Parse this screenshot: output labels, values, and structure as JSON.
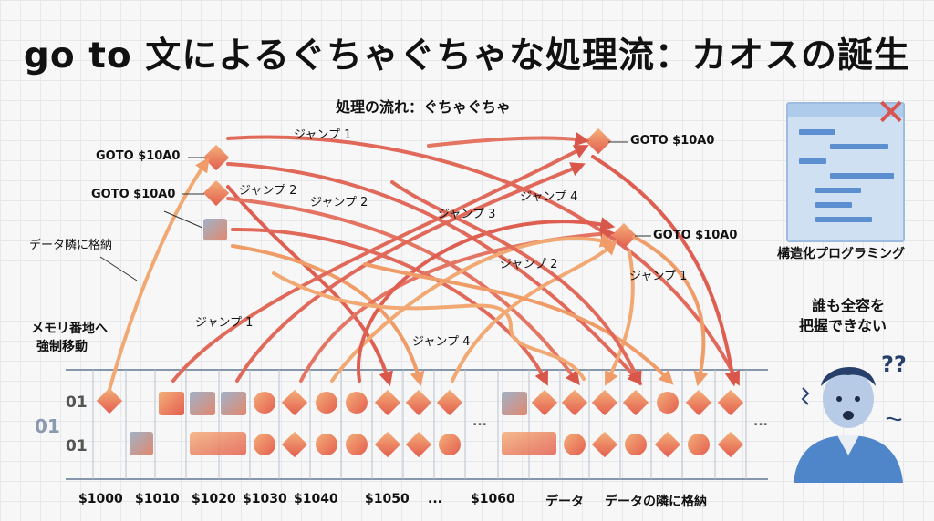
{
  "title": "go to 文によるぐちゃぐちゃな処理流：カオスの誕生",
  "flow_heading": "処理の流れ：ぐちゃぐちゃ",
  "goto_labels": [
    "GOTO $10A0",
    "GOTO $10A0",
    "GOTO $10A0",
    "GOTO $10A0"
  ],
  "jump_labels": [
    "ジャンプ 1",
    "ジャンプ 2",
    "ジャンプ 2",
    "ジャンプ 3",
    "ジャンプ 4",
    "ジャンプ 2",
    "ジャンプ 1",
    "ジャンプ 1",
    "ジャンプ 4"
  ],
  "left_notes": {
    "data_adjacent": "データ隣に格納",
    "memory_move_line1": "メモリ番地へ",
    "memory_move_line2": "強制移動"
  },
  "row_labels": [
    "01",
    "01",
    "01"
  ],
  "ellipsis": "...",
  "addresses": [
    "$1000",
    "$1010",
    "$1020",
    "$1030",
    "$1040",
    "$1050",
    "...",
    "$1060",
    "データ",
    "データの隣に格納"
  ],
  "structured_label": "構造化プログラミング",
  "confused_line1": "誰も全容を",
  "confused_line2": "把握できない",
  "question_marks": "??",
  "colors": {
    "accent": "#e35d4e",
    "orange": "#f0a46a",
    "tape_border": "#9aa7b8",
    "panel": "#cfe0f3"
  }
}
